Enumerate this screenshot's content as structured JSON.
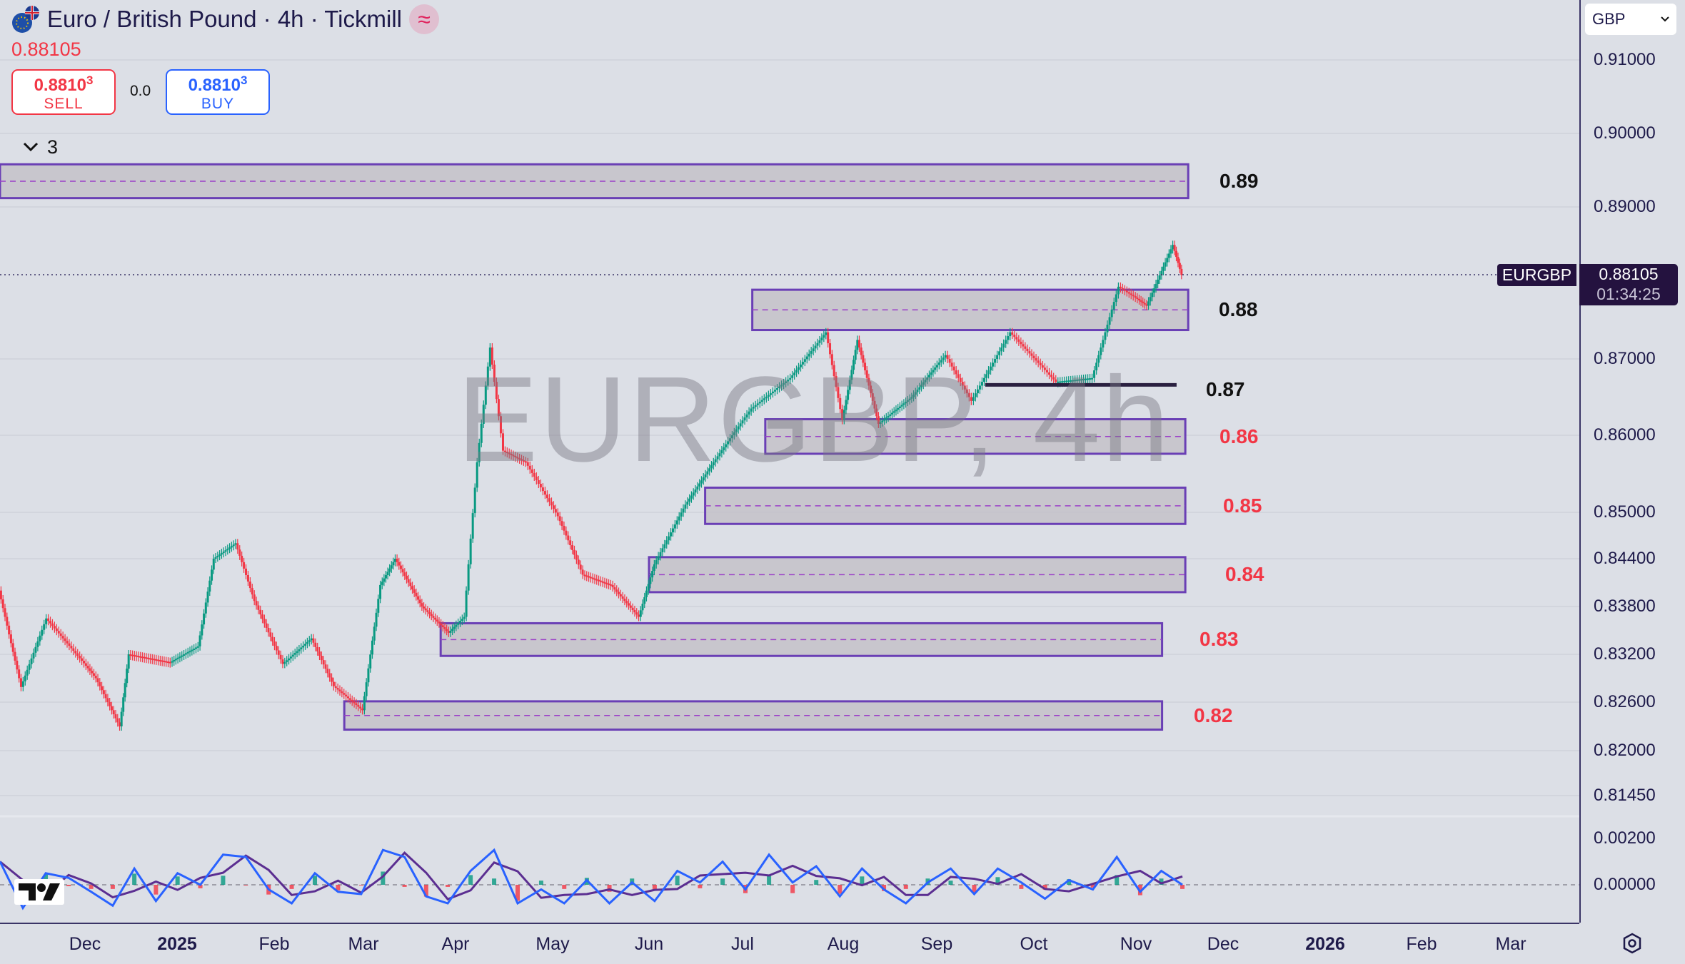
{
  "header": {
    "title": "Euro / British Pound · 4h · Tickmill",
    "last_price": "0.88105",
    "sell": {
      "price": "0.8810",
      "sup": "3",
      "label": "SELL"
    },
    "buy": {
      "price": "0.8810",
      "sup": "3",
      "label": "BUY"
    },
    "spread": "0.0",
    "collapsed_count": "3"
  },
  "watermark": "EURGBP, 4h",
  "currency_select": "GBP",
  "price_label": {
    "symbol": "EURGBP",
    "price": "0.88105",
    "countdown": "01:34:25"
  },
  "colors": {
    "up": "#089981",
    "down": "#f23645",
    "zone_border": "#6a3fb5",
    "zone_fill": "#c4c2c8",
    "osc_line": "#2962ff",
    "osc_signal": "#5b2e91",
    "label_red": "#f23645",
    "label_black": "#111111"
  },
  "icons": [
    "eu-uk-flag-icon",
    "approx-icon",
    "chevron-down-icon",
    "tradingview-logo-icon",
    "settings-icon",
    "dropdown-chevron-icon"
  ],
  "chart_data": {
    "type": "candlestick",
    "symbol": "EURGBP",
    "interval": "4h",
    "y_ticks": [
      "0.91000",
      "0.90000",
      "0.89000",
      "0.87000",
      "0.86000",
      "0.85000",
      "0.84400",
      "0.83800",
      "0.83200",
      "0.82600",
      "0.82000",
      "0.81450"
    ],
    "x_ticks": [
      {
        "label": "Dec",
        "date": "2024-12-01"
      },
      {
        "label": "2025",
        "date": "2025-01-01",
        "bold": true
      },
      {
        "label": "Feb",
        "date": "2025-02-01"
      },
      {
        "label": "Mar",
        "date": "2025-03-01"
      },
      {
        "label": "Apr",
        "date": "2025-04-01"
      },
      {
        "label": "May",
        "date": "2025-05-01"
      },
      {
        "label": "Jun",
        "date": "2025-06-01"
      },
      {
        "label": "Jul",
        "date": "2025-07-01"
      },
      {
        "label": "Aug",
        "date": "2025-08-01"
      },
      {
        "label": "Sep",
        "date": "2025-09-01"
      },
      {
        "label": "Oct",
        "date": "2025-10-01"
      },
      {
        "label": "Nov",
        "date": "2025-11-01"
      },
      {
        "label": "Dec",
        "date": "2025-12-01"
      },
      {
        "label": "2026",
        "date": "2026-01-01",
        "bold": true
      },
      {
        "label": "Feb",
        "date": "2026-02-01"
      },
      {
        "label": "Mar",
        "date": "2026-03-01"
      }
    ],
    "price_path": [
      [
        "2024-11-04",
        0.84
      ],
      [
        "2024-11-11",
        0.8279
      ],
      [
        "2024-11-19",
        0.8365
      ],
      [
        "2024-12-05",
        0.829
      ],
      [
        "2024-12-13",
        0.823
      ],
      [
        "2024-12-16",
        0.832
      ],
      [
        "2024-12-30",
        0.831
      ],
      [
        "2025-01-08",
        0.833
      ],
      [
        "2025-01-13",
        0.844
      ],
      [
        "2025-01-20",
        0.846
      ],
      [
        "2025-01-26",
        0.8387
      ],
      [
        "2025-02-04",
        0.8308
      ],
      [
        "2025-02-13",
        0.834
      ],
      [
        "2025-02-20",
        0.828
      ],
      [
        "2025-03-01",
        0.825
      ],
      [
        "2025-03-07",
        0.8407
      ],
      [
        "2025-03-12",
        0.844
      ],
      [
        "2025-03-21",
        0.838
      ],
      [
        "2025-03-30",
        0.8347
      ],
      [
        "2025-04-04",
        0.8367
      ],
      [
        "2025-04-08",
        0.8565
      ],
      [
        "2025-04-12",
        0.8715
      ],
      [
        "2025-04-16",
        0.858
      ],
      [
        "2025-04-23",
        0.8565
      ],
      [
        "2025-05-03",
        0.8495
      ],
      [
        "2025-05-11",
        0.842
      ],
      [
        "2025-05-20",
        0.8407
      ],
      [
        "2025-05-29",
        0.8367
      ],
      [
        "2025-06-03",
        0.8433
      ],
      [
        "2025-06-13",
        0.851
      ],
      [
        "2025-06-22",
        0.8565
      ],
      [
        "2025-07-04",
        0.8635
      ],
      [
        "2025-07-16",
        0.8675
      ],
      [
        "2025-07-27",
        0.8735
      ],
      [
        "2025-08-01",
        0.862
      ],
      [
        "2025-08-06",
        0.8725
      ],
      [
        "2025-08-13",
        0.8615
      ],
      [
        "2025-08-24",
        0.865
      ],
      [
        "2025-09-04",
        0.8705
      ],
      [
        "2025-09-12",
        0.8645
      ],
      [
        "2025-09-24",
        0.8735
      ],
      [
        "2025-10-08",
        0.867
      ],
      [
        "2025-10-19",
        0.8675
      ],
      [
        "2025-10-27",
        0.8795
      ],
      [
        "2025-11-05",
        0.877
      ],
      [
        "2025-11-14",
        0.885
      ],
      [
        "2025-11-17",
        0.88105
      ]
    ],
    "zones": [
      {
        "top": 0.8958,
        "bottom": 0.8912,
        "start": "2024-11-04",
        "end": "2025-11-19",
        "label": "0.89",
        "label_color": "black"
      },
      {
        "top": 0.8791,
        "bottom": 0.8738,
        "start": "2025-07-04",
        "end": "2025-11-19",
        "label": "0.88",
        "label_color": "black"
      },
      {
        "top": 0.8621,
        "bottom": 0.8576,
        "start": "2025-07-08",
        "end": "2025-11-18",
        "label": "0.86",
        "label_color": "red"
      },
      {
        "top": 0.8532,
        "bottom": 0.8485,
        "start": "2025-06-19",
        "end": "2025-11-18",
        "label": "0.85",
        "label_color": "red"
      },
      {
        "top": 0.8442,
        "bottom": 0.8398,
        "start": "2025-06-01",
        "end": "2025-11-18",
        "label": "0.84",
        "label_color": "red"
      },
      {
        "top": 0.8359,
        "bottom": 0.8318,
        "start": "2025-03-27",
        "end": "2025-11-10",
        "label": "0.83",
        "label_color": "red"
      },
      {
        "top": 0.8261,
        "bottom": 0.8226,
        "start": "2025-02-23",
        "end": "2025-11-10",
        "label": "0.82",
        "label_color": "red"
      }
    ],
    "support_line": {
      "price": 0.8666,
      "start": "2025-09-16",
      "end": "2025-11-15",
      "label": "0.87"
    },
    "oscillator": {
      "y_ticks": [
        "0.00200",
        "0.00000"
      ],
      "start": "2024-11-04",
      "end": "2025-11-17",
      "values": [
        0.001,
        -0.001,
        0.0005,
        0.0003,
        -0.0003,
        -0.0009,
        0.0007,
        -0.0007,
        0.0005,
        0,
        0.0013,
        0.0012,
        -0.0002,
        -0.0008,
        0.0005,
        -0.0003,
        -0.0004,
        0.0015,
        0.0012,
        -0.0005,
        -0.0008,
        0.0006,
        0.0015,
        -0.0008,
        -0.0002,
        -0.0008,
        0.0002,
        -0.0008,
        0.0001,
        -0.0007,
        0.0006,
        0.0001,
        0.001,
        -0.0002,
        0.0013,
        0.0001,
        0.0008,
        -0.0005,
        0.0007,
        -0.0002,
        -0.0008,
        0.0001,
        0.0007,
        -0.0004,
        0.0007,
        0.0001,
        -0.0006,
        0.0002,
        -0.0002,
        0.0012,
        -0.0003,
        0.0006,
        0
      ]
    }
  }
}
